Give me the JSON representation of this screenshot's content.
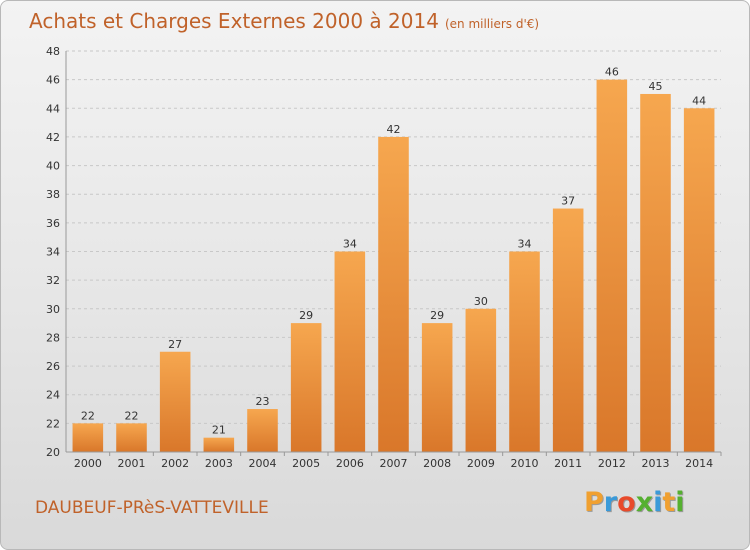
{
  "header": {
    "title": "Achats et Charges Externes 2000 à 2014",
    "unit": "(en milliers d'€)"
  },
  "footer": {
    "city": "DAUBEUF-PRèS-VATTEVILLE",
    "logo_letters": [
      "P",
      "r",
      "o",
      "x",
      "i",
      "t",
      "i"
    ],
    "logo_colors": [
      "#f0a030",
      "#3a9ad9",
      "#e84a2a",
      "#55b030",
      "#3a9ad9",
      "#f0a030",
      "#55b030"
    ]
  },
  "colors": {
    "bar_light": "#f6a74f",
    "bar_dark": "#d9772a",
    "text": "#c0622a"
  },
  "chart_data": {
    "type": "bar",
    "title": "Achats et Charges Externes 2000 à 2014",
    "subtitle": "(en milliers d'€)",
    "xlabel": "",
    "ylabel": "",
    "categories": [
      "2000",
      "2001",
      "2002",
      "2003",
      "2004",
      "2005",
      "2006",
      "2007",
      "2008",
      "2009",
      "2010",
      "2011",
      "2012",
      "2013",
      "2014"
    ],
    "values": [
      22,
      22,
      27,
      21,
      23,
      29,
      34,
      42,
      29,
      30,
      34,
      37,
      46,
      45,
      44
    ],
    "ylim": [
      20,
      48
    ],
    "yticks": [
      20,
      22,
      24,
      26,
      28,
      30,
      32,
      34,
      36,
      38,
      40,
      42,
      44,
      46,
      48
    ],
    "grid": true
  }
}
